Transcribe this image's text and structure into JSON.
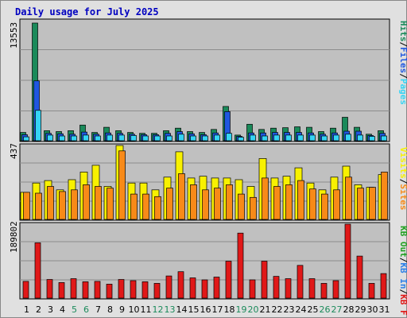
{
  "title": "Daily usage for July 2025",
  "colors": {
    "hits": "#1a8a5a",
    "files": "#1f57e0",
    "pages": "#35d4f4",
    "visits": "#f8f100",
    "sites": "#f88a18",
    "kbin": "#2b7fe8",
    "kbout": "#20a020",
    "kbf": "#e01818",
    "weekend": "#1a8a5a",
    "weekday": "#000000"
  },
  "chart_data": [
    {
      "type": "bar",
      "panel": "hits-files-pages",
      "ymax_label": "13553",
      "ylim": [
        0,
        13553
      ],
      "legend": [
        {
          "label": "Hits",
          "color": "#1a8a5a"
        },
        {
          "label": "/",
          "color": "#000000"
        },
        {
          "label": "Files",
          "color": "#1f57e0"
        },
        {
          "label": "/",
          "color": "#000000"
        },
        {
          "label": "Pages",
          "color": "#35d4f4"
        }
      ],
      "categories": [
        "1",
        "2",
        "3",
        "4",
        "5",
        "6",
        "7",
        "8",
        "9",
        "10",
        "11",
        "12",
        "13",
        "14",
        "15",
        "16",
        "17",
        "18",
        "19",
        "20",
        "21",
        "22",
        "23",
        "24",
        "25",
        "26",
        "27",
        "28",
        "29",
        "30",
        "31"
      ],
      "series": [
        {
          "name": "Hits",
          "color": "#1a8a5a",
          "values": [
            950,
            13553,
            1150,
            1050,
            1150,
            1800,
            950,
            1550,
            1150,
            950,
            850,
            850,
            1150,
            1450,
            1050,
            950,
            1300,
            3950,
            650,
            1900,
            1300,
            1450,
            1500,
            1600,
            1550,
            1050,
            1450,
            2700,
            1550,
            750,
            1150
          ]
        },
        {
          "name": "Files",
          "color": "#1f57e0",
          "values": [
            700,
            6900,
            850,
            800,
            750,
            1000,
            750,
            900,
            850,
            750,
            700,
            700,
            850,
            1050,
            800,
            700,
            900,
            3350,
            500,
            900,
            900,
            950,
            950,
            950,
            900,
            750,
            900,
            1100,
            1100,
            600,
            850
          ]
        },
        {
          "name": "Pages",
          "color": "#35d4f4",
          "values": [
            450,
            3500,
            650,
            550,
            550,
            650,
            550,
            650,
            650,
            600,
            550,
            550,
            550,
            750,
            550,
            550,
            650,
            850,
            400,
            650,
            550,
            650,
            650,
            650,
            650,
            550,
            650,
            750,
            650,
            500,
            550
          ]
        }
      ]
    },
    {
      "type": "bar",
      "panel": "visits-sites",
      "ymax_label": "437",
      "ylim": [
        0,
        437
      ],
      "legend": [
        {
          "label": "Visits",
          "color": "#f8f100"
        },
        {
          "label": "/",
          "color": "#000000"
        },
        {
          "label": "Sites",
          "color": "#f88a18"
        }
      ],
      "categories": [
        "1",
        "2",
        "3",
        "4",
        "5",
        "6",
        "7",
        "8",
        "9",
        "10",
        "11",
        "12",
        "13",
        "14",
        "15",
        "16",
        "17",
        "18",
        "19",
        "20",
        "21",
        "22",
        "23",
        "24",
        "25",
        "26",
        "27",
        "28",
        "29",
        "30",
        "31"
      ],
      "series": [
        {
          "name": "Visits",
          "color": "#f8f100",
          "values": [
            160,
            215,
            230,
            175,
            235,
            280,
            320,
            195,
            437,
            215,
            215,
            175,
            250,
            400,
            245,
            255,
            245,
            245,
            235,
            195,
            360,
            245,
            255,
            305,
            215,
            175,
            250,
            315,
            205,
            190,
            265
          ]
        },
        {
          "name": "Sites",
          "color": "#f88a18",
          "values": [
            160,
            155,
            195,
            165,
            175,
            205,
            195,
            185,
            405,
            150,
            150,
            135,
            185,
            270,
            205,
            175,
            185,
            205,
            150,
            130,
            245,
            195,
            205,
            230,
            180,
            150,
            175,
            250,
            185,
            190,
            280
          ]
        }
      ]
    },
    {
      "type": "bar",
      "panel": "kbf",
      "ymax_label": "189802",
      "ylim": [
        0,
        189802
      ],
      "legend": [
        {
          "label": "KB F",
          "color": "#e01818"
        },
        {
          "label": "/",
          "color": "#000000"
        },
        {
          "label": "KB In",
          "color": "#2b7fe8"
        },
        {
          "label": "/",
          "color": "#000000"
        },
        {
          "label": "KB Out",
          "color": "#20a020"
        }
      ],
      "categories": [
        "1",
        "2",
        "3",
        "4",
        "5",
        "6",
        "7",
        "8",
        "9",
        "10",
        "11",
        "12",
        "13",
        "14",
        "15",
        "16",
        "17",
        "18",
        "19",
        "20",
        "21",
        "22",
        "23",
        "24",
        "25",
        "26",
        "27",
        "28",
        "29",
        "30",
        "31"
      ],
      "series": [
        {
          "name": "KB F",
          "color": "#e01818",
          "values": [
            43000,
            142000,
            48000,
            40000,
            50000,
            42000,
            43000,
            36000,
            48000,
            45000,
            42000,
            38000,
            57000,
            68000,
            52000,
            47000,
            54000,
            95000,
            167000,
            47000,
            95000,
            56000,
            50000,
            84000,
            50000,
            38000,
            45000,
            189802,
            108000,
            38000,
            63000
          ]
        }
      ]
    }
  ],
  "xaxis": {
    "labels": [
      "1",
      "2",
      "3",
      "4",
      "5",
      "6",
      "7",
      "8",
      "9",
      "10",
      "11",
      "12",
      "13",
      "14",
      "15",
      "16",
      "17",
      "18",
      "19",
      "20",
      "21",
      "22",
      "23",
      "24",
      "25",
      "26",
      "27",
      "28",
      "29",
      "30",
      "31"
    ],
    "weekend": [
      false,
      false,
      false,
      false,
      true,
      true,
      false,
      false,
      false,
      false,
      false,
      true,
      true,
      false,
      false,
      false,
      false,
      false,
      true,
      true,
      false,
      false,
      false,
      false,
      false,
      true,
      true,
      false,
      false,
      false,
      false
    ]
  }
}
